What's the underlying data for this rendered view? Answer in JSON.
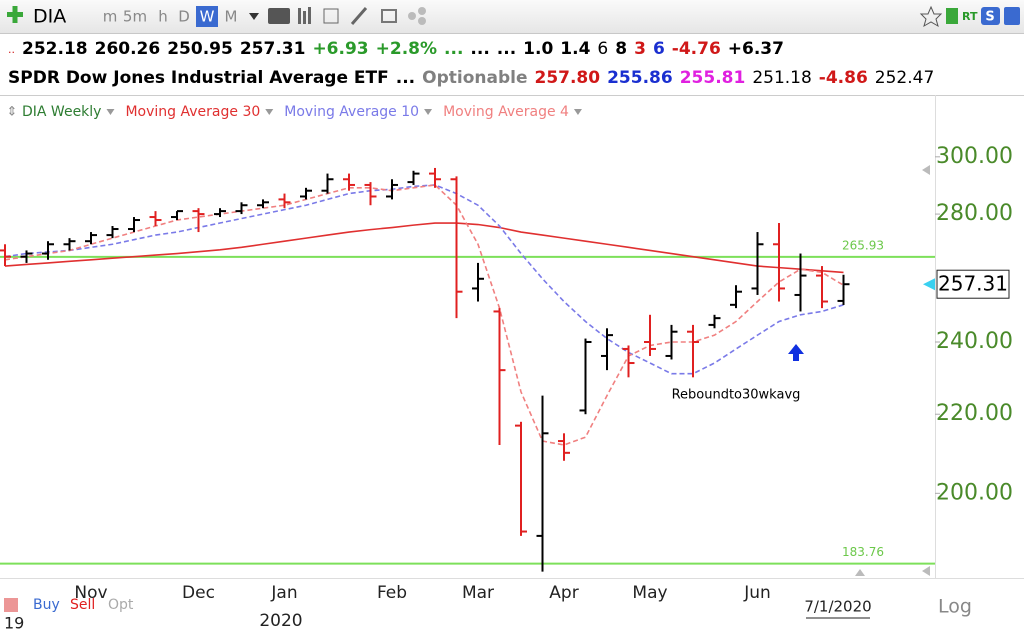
{
  "toolbar": {
    "symbol": "DIA",
    "intervals": [
      "m",
      "5m",
      "h",
      "D",
      "W",
      "M"
    ],
    "selected_interval": 4,
    "badges": [
      "RT",
      "S"
    ]
  },
  "quote": {
    "row1": [
      {
        "text": "+6.93",
        "color": "#2a9a2a",
        "bold": true
      },
      {
        "text": "+2.8%",
        "color": "#2a9a2a",
        "bold": true
      },
      {
        "text": "...",
        "color": "#2a9a2a",
        "bold": true
      },
      {
        "text": "...",
        "color": "#000000",
        "bold": true
      },
      {
        "text": "...",
        "color": "#000000",
        "bold": true
      },
      {
        "text": "1.0",
        "color": "#000000",
        "bold": true
      },
      {
        "text": "1.4",
        "color": "#000000",
        "bold": true
      },
      {
        "text": "6",
        "color": "#000000",
        "bold": false
      },
      {
        "text": "8",
        "color": "#000000",
        "bold": true
      },
      {
        "text": "3",
        "color": "#d01818",
        "bold": true
      },
      {
        "text": "6",
        "color": "#1a2fd0",
        "bold": true
      },
      {
        "text": "-4.76",
        "color": "#d01818",
        "bold": true
      },
      {
        "text": "+6.37",
        "color": "#000000",
        "bold": true
      }
    ],
    "row1_lead": {
      "text": "..",
      "color": "#d01818"
    },
    "row2": [
      {
        "text": "SPDR Dow Jones Industrial Average ETF",
        "color": "#000000",
        "bold": true
      },
      {
        "text": "...",
        "color": "#000000",
        "bold": true
      },
      {
        "text": "Optionable",
        "color": "#808080",
        "bold": true
      },
      {
        "text": "257.80",
        "color": "#d01818",
        "bold": true
      },
      {
        "text": "255.86",
        "color": "#1a2fd0",
        "bold": true
      },
      {
        "text": "255.81",
        "color": "#e020e0",
        "bold": true
      },
      {
        "text": "251.18",
        "color": "#000000",
        "bold": false
      },
      {
        "text": "-4.86",
        "color": "#d01818",
        "bold": true
      },
      {
        "text": "252.47",
        "color": "#000000",
        "bold": false
      }
    ]
  },
  "chart_data": {
    "type": "ohlc",
    "name": "DIA Weekly",
    "name_color": "#2e7d32",
    "log_scale": true,
    "grid": false,
    "up_color": "#000000",
    "down_color": "#e02020",
    "ylim": [
      180.6,
      323.2
    ],
    "yticks": [
      {
        "value": 200,
        "label": "200.00"
      },
      {
        "value": 220,
        "label": "220.00"
      },
      {
        "value": 240,
        "label": "240.00"
      },
      {
        "value": 280,
        "label": "280.00"
      },
      {
        "value": 300,
        "label": "300.00"
      }
    ],
    "categories": [
      null,
      null,
      null,
      null,
      "Nov",
      null,
      null,
      null,
      null,
      "Dec",
      null,
      null,
      null,
      "Jan",
      null,
      null,
      null,
      null,
      "Feb",
      null,
      null,
      null,
      "Mar",
      null,
      null,
      null,
      "Apr",
      null,
      null,
      null,
      "May",
      null,
      null,
      null,
      null,
      "Jun",
      null,
      null,
      null,
      null
    ],
    "ohlc": {
      "open": [
        268,
        266,
        267,
        270,
        271,
        273,
        275,
        279,
        279,
        281,
        280,
        281,
        283,
        285,
        286,
        288,
        292,
        290,
        286,
        291,
        294,
        292,
        256,
        249,
        217,
        190,
        213,
        221,
        236,
        238,
        240,
        236,
        243,
        245,
        251,
        256,
        270,
        254,
        260,
        252.18
      ],
      "high": [
        270,
        268,
        271,
        272,
        274,
        276,
        279,
        281,
        281,
        282,
        282,
        284,
        285,
        287,
        289,
        294,
        294,
        291,
        292,
        295,
        296,
        293,
        264,
        250,
        218,
        225,
        215,
        241,
        244,
        239,
        248,
        245,
        245,
        248,
        257,
        274,
        277,
        267,
        263,
        260.26
      ],
      "low": [
        263,
        264,
        265,
        268,
        270,
        272,
        274,
        276,
        278,
        274,
        279,
        280,
        282,
        282,
        285,
        287,
        288,
        283,
        285,
        290,
        289,
        247,
        252,
        212,
        190,
        182,
        208,
        220,
        232,
        230,
        236,
        235,
        230,
        244,
        250,
        254,
        252,
        249,
        250,
        250.95
      ],
      "close": [
        266,
        267,
        270,
        271,
        273,
        275,
        278,
        278,
        281,
        280,
        281,
        283,
        284,
        284,
        288,
        292,
        290,
        286,
        290,
        294,
        292,
        255,
        259,
        232,
        191,
        215,
        210,
        240,
        242,
        234,
        238,
        243,
        240,
        247,
        255,
        270,
        256,
        260,
        252,
        257.31
      ]
    },
    "series": [
      {
        "name": "Moving Average 30",
        "color": "#e03030",
        "dashed": false,
        "values": [
          263,
          263.5,
          264,
          264.5,
          265,
          265.5,
          266,
          266.5,
          267,
          267.6,
          268.2,
          269,
          270,
          271,
          272,
          273,
          274,
          274.8,
          275.5,
          276.3,
          277,
          277,
          276.5,
          275.5,
          274,
          273,
          272,
          271,
          270,
          269,
          268,
          267,
          266,
          265,
          264,
          263,
          262.5,
          262,
          261.5,
          261
        ]
      },
      {
        "name": "Moving Average 10",
        "color": "#7a7ae8",
        "dashed": true,
        "values": [
          266,
          267,
          267.5,
          268,
          269,
          270,
          271.5,
          273,
          274,
          275.5,
          277,
          278.5,
          280,
          281.5,
          283,
          285,
          287,
          288,
          288.5,
          289.5,
          290,
          287,
          283,
          276,
          267,
          259,
          252,
          246,
          241,
          237,
          234,
          231,
          231,
          234,
          238,
          242,
          246,
          248,
          249,
          251
        ]
      },
      {
        "name": "Moving Average 4",
        "color": "#f08080",
        "dashed": true,
        "values": [
          265,
          266,
          267,
          268,
          270,
          272,
          274,
          276,
          278,
          279,
          280,
          281,
          282,
          283,
          285,
          287,
          289,
          289,
          288,
          289,
          290,
          283,
          270,
          250,
          226,
          213,
          212,
          214,
          225,
          236,
          239,
          240,
          240,
          242,
          246,
          252,
          258,
          262,
          261,
          257
        ]
      }
    ],
    "hlines": [
      265.93,
      183.76
    ],
    "hline_color": "#7de05a",
    "annotation": "Reboundto30wkavg"
  },
  "footer": {
    "buy": "Buy",
    "sell": "Sell",
    "opt": "Opt",
    "year_prev": "19",
    "year": "2020",
    "date": "7/1/2020",
    "scale": "Log"
  }
}
